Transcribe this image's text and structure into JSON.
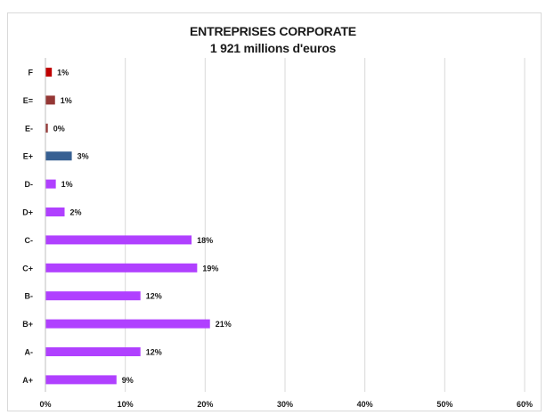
{
  "chart_data": {
    "type": "bar",
    "orientation": "horizontal",
    "title": "ENTREPRISES CORPORATE",
    "subtitle": "1 921 millions d'euros",
    "categories": [
      "F",
      "E=",
      "E-",
      "E+",
      "D-",
      "D+",
      "C-",
      "C+",
      "B-",
      "B+",
      "A-",
      "A+"
    ],
    "values": [
      1,
      1,
      0,
      3,
      1,
      2,
      18,
      19,
      12,
      21,
      12,
      9
    ],
    "value_labels": [
      "1%",
      "1%",
      "0%",
      "3%",
      "1%",
      "2%",
      "18%",
      "19%",
      "12%",
      "21%",
      "12%",
      "9%"
    ],
    "bar_lengths_pct": [
      0.8,
      1.2,
      0.3,
      3.3,
      1.3,
      2.4,
      18.3,
      19.0,
      11.9,
      20.6,
      11.9,
      8.9
    ],
    "bar_colors": [
      "#c00000",
      "#953735",
      "#953735",
      "#376092",
      "#b040ff",
      "#b040ff",
      "#b040ff",
      "#b040ff",
      "#b040ff",
      "#b040ff",
      "#b040ff",
      "#b040ff"
    ],
    "xlim": [
      0,
      60
    ],
    "x_ticks": [
      "0%",
      "10%",
      "20%",
      "30%",
      "40%",
      "50%",
      "60%"
    ],
    "xlabel": "",
    "ylabel": "",
    "grid": "vertical",
    "legend": "none"
  }
}
